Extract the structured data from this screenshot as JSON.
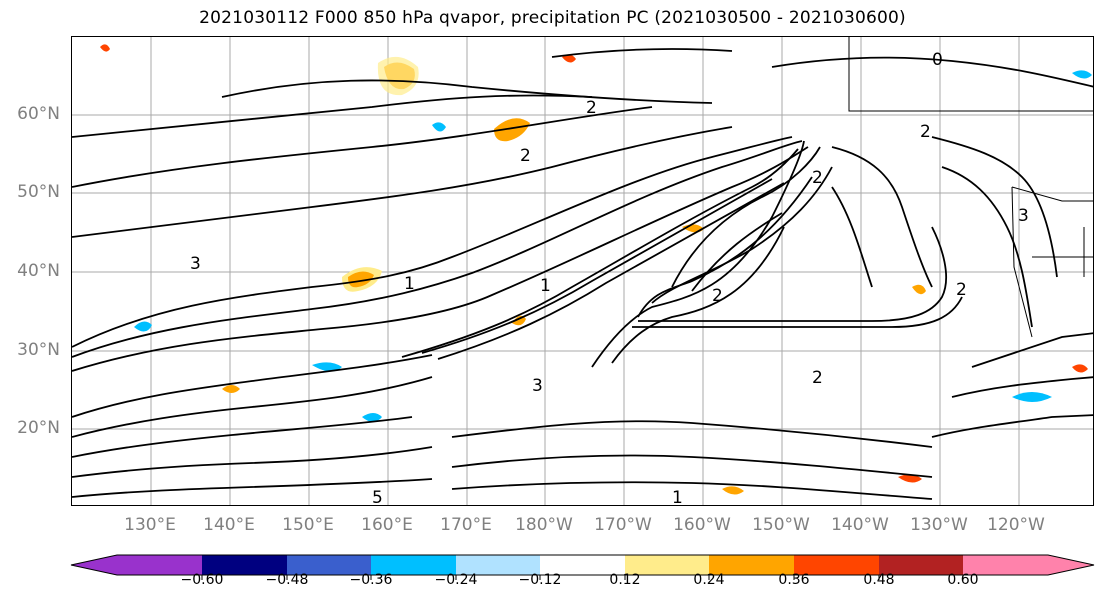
{
  "title": "2021030112 F000 850 hPa qvapor, precipitation PC (2021030500 - 2021030600)",
  "map": {
    "lat_labels": [
      "60°N",
      "50°N",
      "40°N",
      "30°N",
      "20°N"
    ],
    "lon_labels": [
      "130°E",
      "140°E",
      "150°E",
      "160°E",
      "170°E",
      "180°W",
      "170°W",
      "160°W",
      "150°W",
      "140°W",
      "130°W",
      "120°W"
    ],
    "contour_labels": [
      "2",
      "2",
      "2",
      "2",
      "3",
      "1",
      "1",
      "2",
      "2",
      "3",
      "0",
      "2",
      "5",
      "1",
      "3"
    ]
  },
  "colorbar": {
    "ticks": [
      "−0.60",
      "−0.48",
      "−0.36",
      "−0.24",
      "−0.12",
      "0.12",
      "0.24",
      "0.36",
      "0.48",
      "0.60"
    ],
    "colors": [
      "#9932cc",
      "#000080",
      "#3a5fcd",
      "#00bfff",
      "#b0e2ff",
      "#ffffff",
      "#ffec8b",
      "#ffa500",
      "#ff4500",
      "#b22222",
      "#ff82ab"
    ]
  }
}
